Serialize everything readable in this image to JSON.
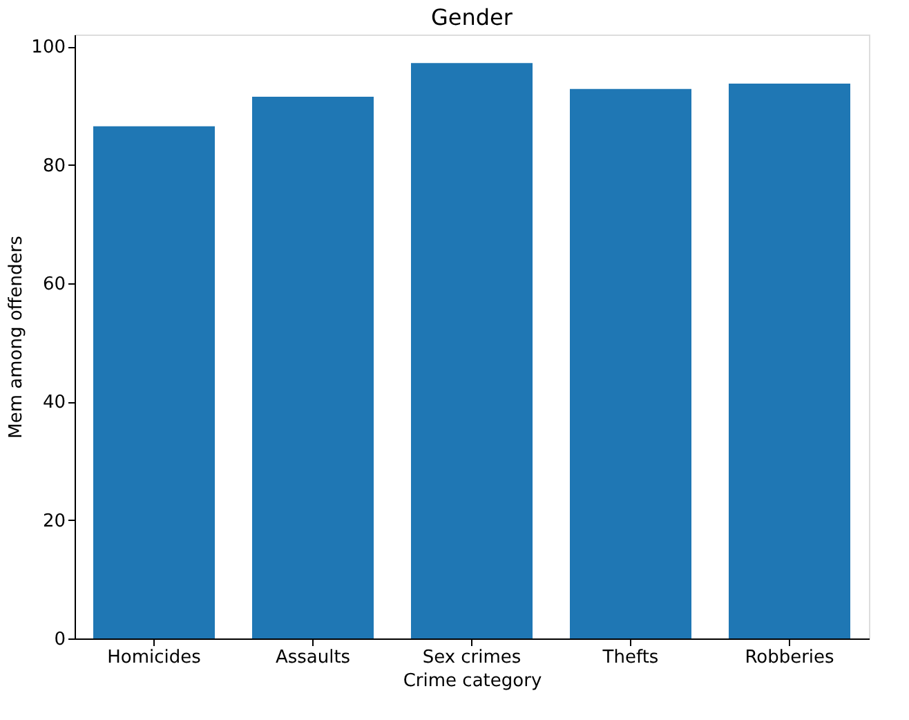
{
  "chart_data": {
    "type": "bar",
    "title": "Gender",
    "xlabel": "Crime category",
    "ylabel": "Mem among offenders",
    "categories": [
      "Homicides",
      "Assaults",
      "Sex crimes",
      "Thefts",
      "Robberies"
    ],
    "values": [
      86.5,
      91.5,
      97.2,
      92.8,
      93.7
    ],
    "color": "#1f77b4",
    "ylim": [
      0,
      102
    ],
    "yticks": [
      0,
      20,
      40,
      60,
      80,
      100
    ],
    "grid": false
  }
}
